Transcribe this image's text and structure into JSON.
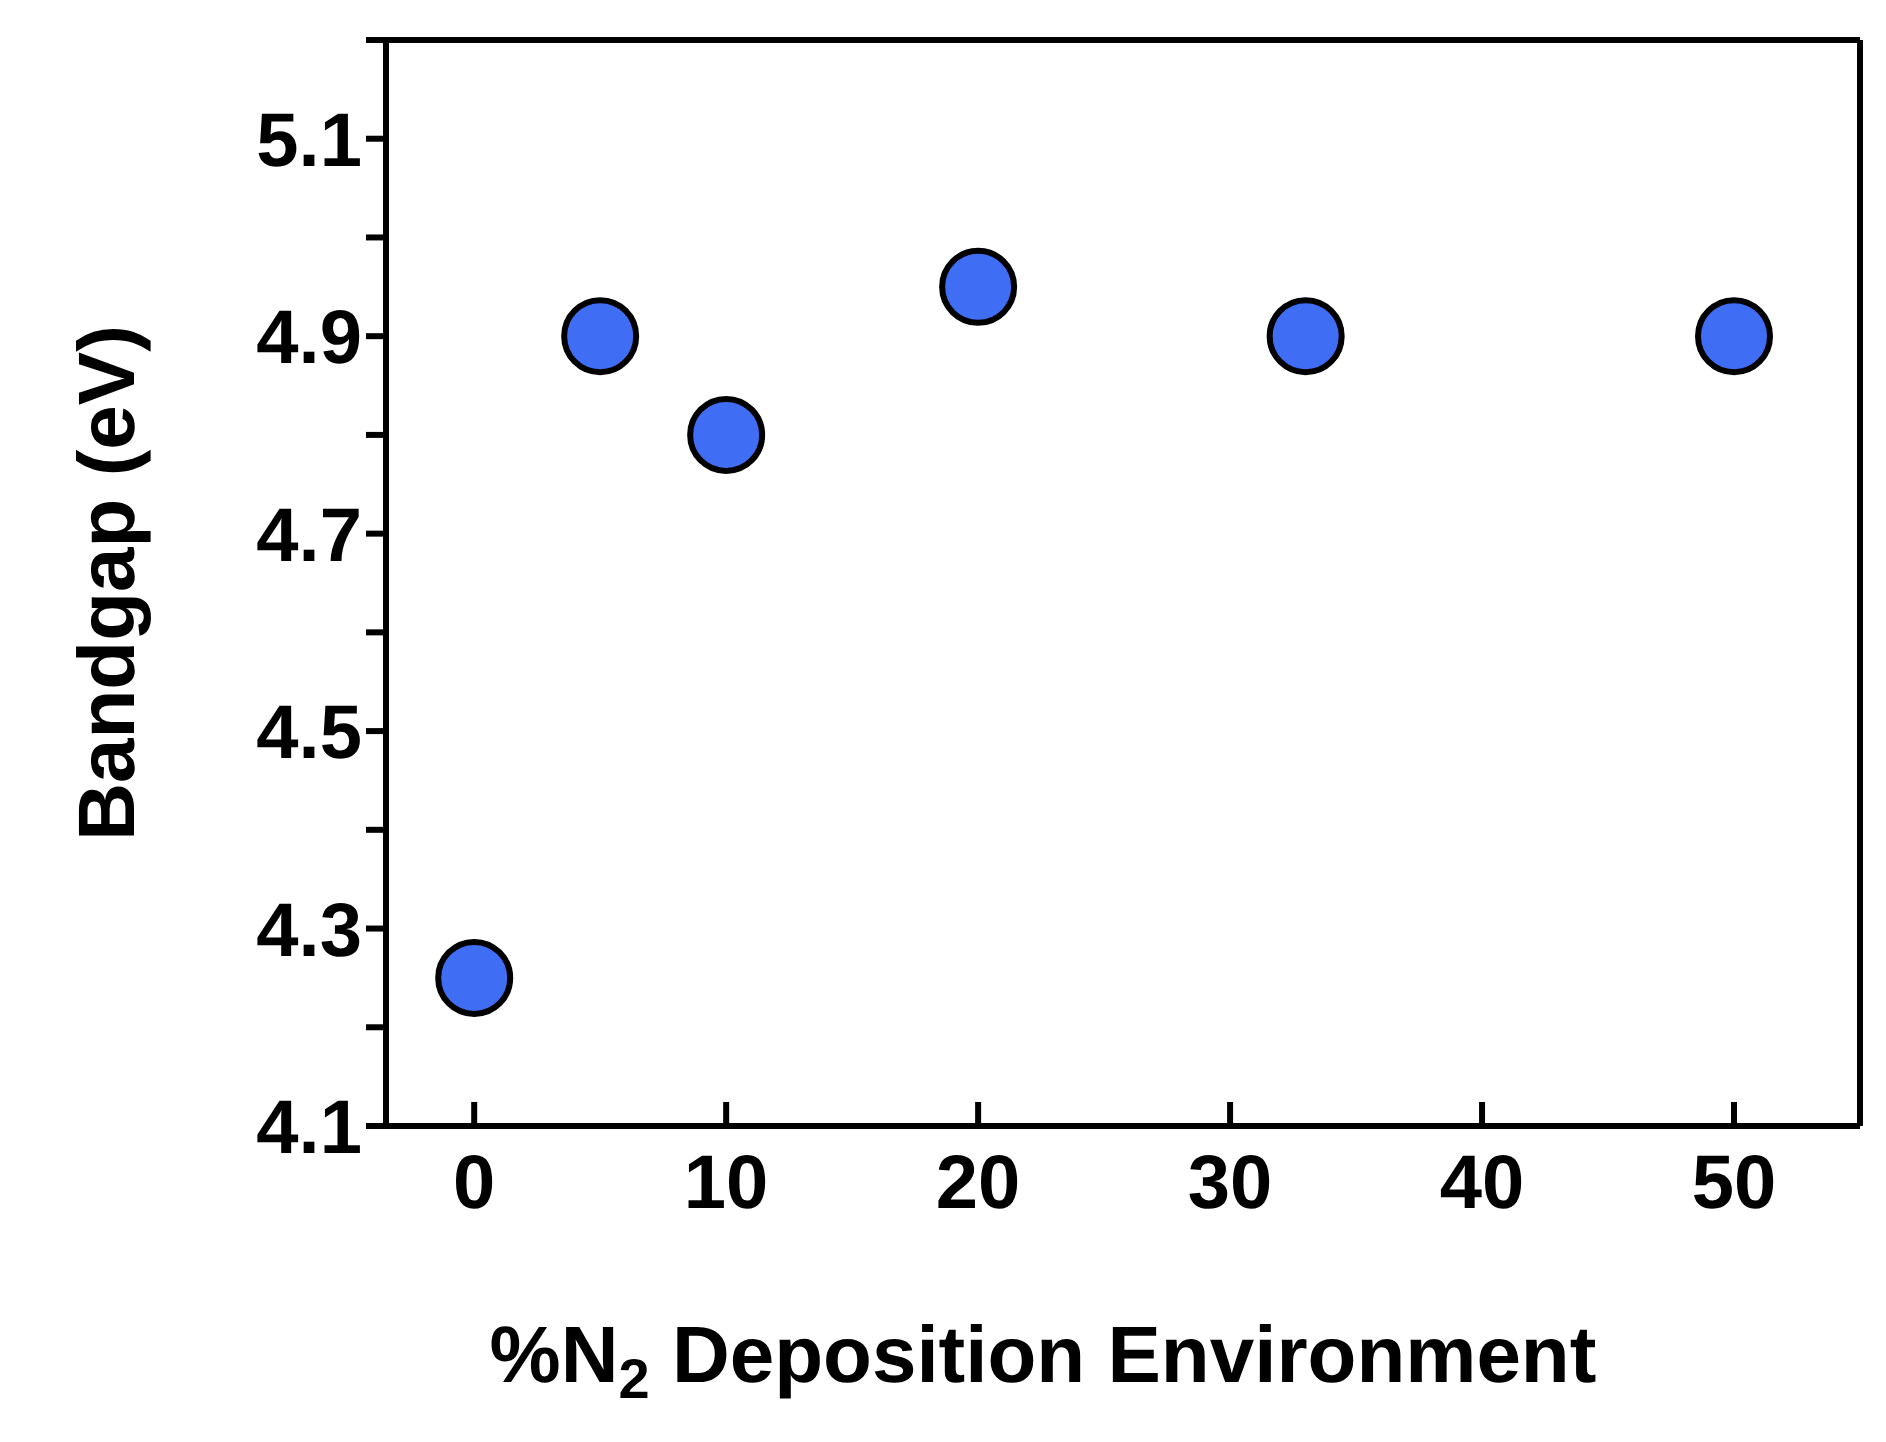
{
  "chart_data": {
    "type": "scatter",
    "xlabel": "%N$_{2}$ Deposition Environment",
    "ylabel": "Bandgap (eV)",
    "x": [
      0,
      5,
      10,
      20,
      33,
      50
    ],
    "series": [
      {
        "color": "#3f6ef5",
        "values": [
          4.25,
          4.9,
          4.8,
          4.95,
          4.9,
          4.9
        ]
      }
    ],
    "xlim": [
      -3.5,
      55
    ],
    "xticks": [
      0,
      10,
      20,
      30,
      40,
      50
    ],
    "ylim": [
      4.1,
      5.2
    ],
    "yticks": [
      4.1,
      {
        "value": 4.2,
        "label": null
      },
      4.3,
      {
        "value": 4.4,
        "label": null
      },
      4.5,
      {
        "value": 4.6,
        "label": null
      },
      4.7,
      {
        "value": 4.8,
        "label": null
      },
      4.9,
      {
        "value": 5.0,
        "label": null
      },
      5.1,
      {
        "value": 5.2,
        "label": null
      }
    ],
    "marker": "circle",
    "grid": false,
    "legend": false
  }
}
